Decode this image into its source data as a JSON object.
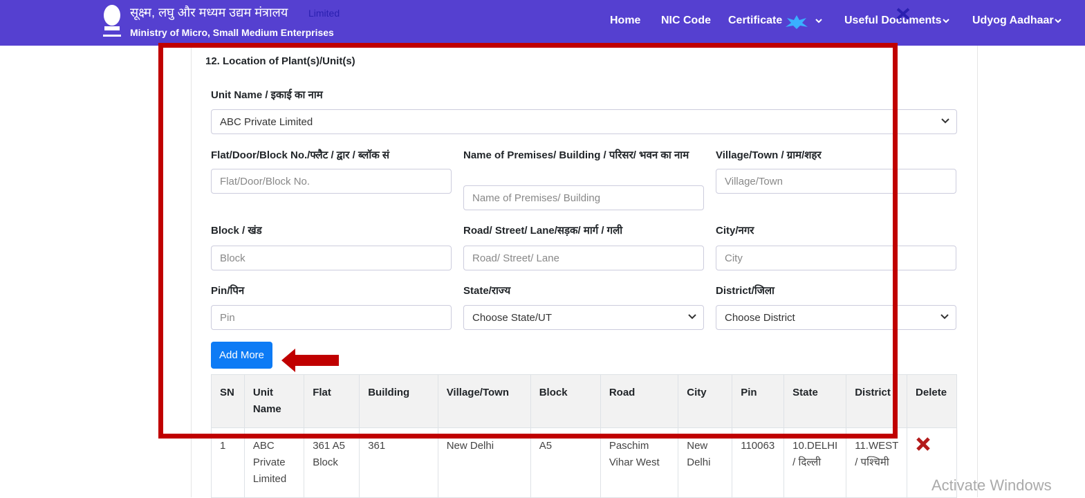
{
  "header": {
    "logo_hindi": "सूक्ष्म, लघु और मध्यम उद्यम मंत्रालय",
    "logo_english": "Ministry of Micro, Small Medium Enterprises",
    "ghost_text": "Limited",
    "nav": [
      "Home",
      "NIC Code",
      "Certificate",
      "Useful Documents",
      "Udyog Aadhaar"
    ]
  },
  "form": {
    "section_title": "12. Location of Plant(s)/Unit(s)",
    "unit_name_label": "Unit Name / इकाई का नाम",
    "unit_name_value": "ABC Private Limited",
    "fields": [
      {
        "label": "Flat/Door/Block No./फ्लैट / द्वार / ब्लॉक सं",
        "placeholder": "Flat/Door/Block No."
      },
      {
        "label": "Name of Premises/ Building / परिसर/ भवन का नाम",
        "placeholder": "Name of Premises/ Building"
      },
      {
        "label": "Village/Town / ग्राम/शहर",
        "placeholder": "Village/Town"
      },
      {
        "label": "Block / खंड",
        "placeholder": "Block"
      },
      {
        "label": "Road/ Street/ Lane/सड़क/ मार्ग / गली",
        "placeholder": "Road/ Street/ Lane"
      },
      {
        "label": "City/नगर",
        "placeholder": "City"
      },
      {
        "label": "Pin/पिन",
        "placeholder": "Pin"
      },
      {
        "label": "State/राज्य",
        "placeholder": "Choose State/UT"
      },
      {
        "label": "District/जिला",
        "placeholder": "Choose District"
      }
    ],
    "button": "Add More"
  },
  "table": {
    "headers": [
      "SN",
      "Unit Name",
      "Flat",
      "Building",
      "Village/Town",
      "Block",
      "Road",
      "City",
      "Pin",
      "State",
      "District",
      "Delete"
    ],
    "rows": [
      [
        "1",
        "ABC Private Limited",
        "361 A5 Block",
        "361",
        "New Delhi",
        "A5",
        "Paschim Vihar West",
        "New Delhi",
        "110063",
        "10.DELHI / दिल्ली",
        "11.WEST / पश्चिमी"
      ]
    ]
  },
  "watermark": "Activate Windows"
}
